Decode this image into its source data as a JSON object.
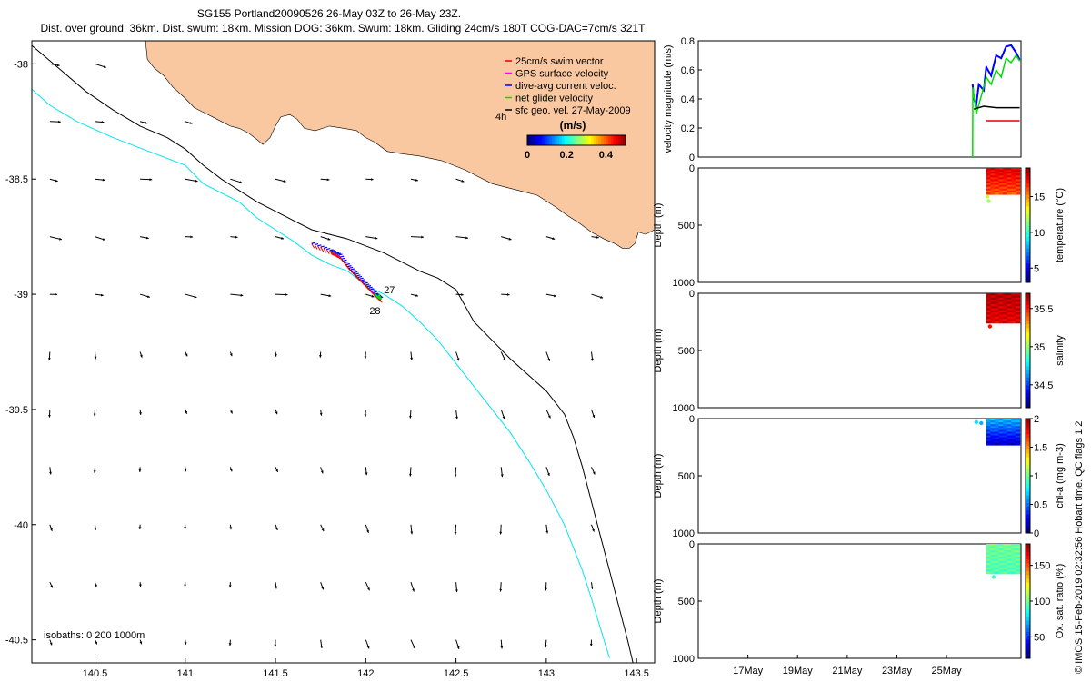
{
  "header": {
    "line1": "SG155 Portland20090526 26-May 03Z to 26-May 23Z.",
    "line2": "Dist. over ground: 36km. Dist. swum: 18km. Mission DOG: 36km. Swum: 18km. Gliding 24cm/s 180T COG-DAC=7cm/s 321T"
  },
  "colors": {
    "land": "#fac8a0",
    "isobath200": "#00e5ee",
    "isobath1000": "#000000",
    "swim": "#e00000",
    "gps": "#ff00ff",
    "dac": "#0000ff",
    "net": "#00dd00",
    "sfc": "#000000"
  },
  "chart_data": [
    {
      "type": "map",
      "name": "track-map",
      "xlabel": "",
      "ylabel": "",
      "xlim": [
        140.15,
        143.6
      ],
      "ylim": [
        -40.6,
        -37.9
      ],
      "xticks": [
        140.5,
        141,
        141.5,
        142,
        142.5,
        143,
        143.5
      ],
      "xtick_labels": [
        "140.5",
        "141",
        "141.5",
        "142",
        "142.5",
        "143",
        "143.5"
      ],
      "yticks": [
        -38,
        -38.5,
        -39,
        -39.5,
        -40,
        -40.5
      ],
      "ytick_labels": [
        "-38",
        "-38.5",
        "-39",
        "-39.5",
        "-40",
        "-40.5"
      ],
      "legend": [
        {
          "key": "swim",
          "label": "25cm/s swim vector"
        },
        {
          "key": "gps",
          "label": "GPS surface velocity"
        },
        {
          "key": "dac",
          "label": "dive-avg current veloc."
        },
        {
          "key": "net",
          "label": "net glider velocity"
        },
        {
          "key": "sfc",
          "label": "sfc geo. vel. 27-May-2009"
        }
      ],
      "legend_extra": "4h",
      "colorbar": {
        "title": "(m/s)",
        "ticks": [
          0,
          0.2,
          0.4
        ],
        "tick_labels": [
          "0",
          "0.2",
          "0.4"
        ],
        "range": [
          0,
          0.5
        ]
      },
      "isobath_label": "isobaths: 0   200  1000m",
      "track_labels": [
        {
          "text": "27",
          "x": 142.08,
          "y": -38.98
        },
        {
          "text": "28",
          "x": 142.0,
          "y": -39.07
        }
      ],
      "track": [
        [
          141.7,
          -38.78
        ],
        [
          141.8,
          -38.81
        ],
        [
          141.85,
          -38.83
        ],
        [
          141.9,
          -38.88
        ],
        [
          141.95,
          -38.92
        ],
        [
          142.0,
          -38.96
        ],
        [
          142.05,
          -39.0
        ],
        [
          142.08,
          -39.02
        ]
      ],
      "coast": [
        [
          140.78,
          -37.9
        ],
        [
          140.79,
          -37.98
        ],
        [
          140.83,
          -38.02
        ],
        [
          140.88,
          -38.05
        ],
        [
          140.93,
          -38.1
        ],
        [
          141.0,
          -38.15
        ],
        [
          141.05,
          -38.19
        ],
        [
          141.1,
          -38.21
        ],
        [
          141.15,
          -38.23
        ],
        [
          141.2,
          -38.25
        ],
        [
          141.25,
          -38.27
        ],
        [
          141.3,
          -38.28
        ],
        [
          141.35,
          -38.3
        ],
        [
          141.4,
          -38.33
        ],
        [
          141.43,
          -38.35
        ],
        [
          141.47,
          -38.32
        ],
        [
          141.5,
          -38.27
        ],
        [
          141.53,
          -38.23
        ],
        [
          141.58,
          -38.22
        ],
        [
          141.62,
          -38.24
        ],
        [
          141.66,
          -38.28
        ],
        [
          141.72,
          -38.29
        ],
        [
          141.8,
          -38.27
        ],
        [
          141.88,
          -38.28
        ],
        [
          141.95,
          -38.29
        ],
        [
          142.0,
          -38.32
        ],
        [
          142.05,
          -38.34
        ],
        [
          142.12,
          -38.38
        ],
        [
          142.2,
          -38.39
        ],
        [
          142.3,
          -38.4
        ],
        [
          142.42,
          -38.42
        ],
        [
          142.55,
          -38.46
        ],
        [
          142.7,
          -38.52
        ],
        [
          142.85,
          -38.55
        ],
        [
          142.95,
          -38.57
        ],
        [
          143.05,
          -38.62
        ],
        [
          143.12,
          -38.66
        ],
        [
          143.18,
          -38.69
        ],
        [
          143.25,
          -38.73
        ],
        [
          143.32,
          -38.76
        ],
        [
          143.38,
          -38.78
        ],
        [
          143.42,
          -38.8
        ],
        [
          143.46,
          -38.8
        ],
        [
          143.49,
          -38.78
        ],
        [
          143.51,
          -38.73
        ],
        [
          143.55,
          -38.74
        ],
        [
          143.6,
          -38.72
        ]
      ],
      "isobath200": [
        [
          140.15,
          -38.11
        ],
        [
          140.25,
          -38.18
        ],
        [
          140.4,
          -38.25
        ],
        [
          140.6,
          -38.32
        ],
        [
          140.8,
          -38.38
        ],
        [
          141.0,
          -38.44
        ],
        [
          141.1,
          -38.52
        ],
        [
          141.2,
          -38.56
        ],
        [
          141.3,
          -38.6
        ],
        [
          141.4,
          -38.67
        ],
        [
          141.5,
          -38.72
        ],
        [
          141.6,
          -38.77
        ],
        [
          141.7,
          -38.83
        ],
        [
          141.8,
          -38.87
        ],
        [
          141.9,
          -38.9
        ],
        [
          142.0,
          -38.96
        ],
        [
          142.1,
          -39.0
        ],
        [
          142.2,
          -39.05
        ],
        [
          142.3,
          -39.12
        ],
        [
          142.4,
          -39.2
        ],
        [
          142.5,
          -39.3
        ],
        [
          142.6,
          -39.4
        ],
        [
          142.7,
          -39.5
        ],
        [
          142.8,
          -39.6
        ],
        [
          142.9,
          -39.72
        ],
        [
          143.0,
          -39.85
        ],
        [
          143.1,
          -40.0
        ],
        [
          143.15,
          -40.1
        ],
        [
          143.2,
          -40.2
        ],
        [
          143.25,
          -40.32
        ],
        [
          143.3,
          -40.45
        ],
        [
          143.35,
          -40.58
        ]
      ],
      "isobath1000": [
        [
          140.15,
          -37.92
        ],
        [
          140.3,
          -38.02
        ],
        [
          140.45,
          -38.12
        ],
        [
          140.6,
          -38.2
        ],
        [
          140.75,
          -38.27
        ],
        [
          140.9,
          -38.32
        ],
        [
          141.0,
          -38.37
        ],
        [
          141.1,
          -38.44
        ],
        [
          141.2,
          -38.5
        ],
        [
          141.3,
          -38.55
        ],
        [
          141.4,
          -38.6
        ],
        [
          141.5,
          -38.64
        ],
        [
          141.6,
          -38.68
        ],
        [
          141.7,
          -38.72
        ],
        [
          141.8,
          -38.74
        ],
        [
          141.9,
          -38.76
        ],
        [
          142.0,
          -38.79
        ],
        [
          142.1,
          -38.82
        ],
        [
          142.2,
          -38.86
        ],
        [
          142.3,
          -38.9
        ],
        [
          142.4,
          -38.93
        ],
        [
          142.5,
          -38.98
        ],
        [
          142.55,
          -39.05
        ],
        [
          142.6,
          -39.12
        ],
        [
          142.7,
          -39.2
        ],
        [
          142.8,
          -39.28
        ],
        [
          142.9,
          -39.35
        ],
        [
          143.0,
          -39.42
        ],
        [
          143.1,
          -39.52
        ],
        [
          143.15,
          -39.62
        ],
        [
          143.2,
          -39.75
        ],
        [
          143.25,
          -39.9
        ],
        [
          143.3,
          -40.05
        ],
        [
          143.35,
          -40.2
        ],
        [
          143.4,
          -40.35
        ],
        [
          143.45,
          -40.5
        ],
        [
          143.48,
          -40.6
        ]
      ]
    },
    {
      "type": "line",
      "name": "velocity-panel",
      "xlabel": "",
      "ylabel": "velocity magnitude (m/s)",
      "xlim": [
        15,
        28
      ],
      "ylim": [
        0,
        0.8
      ],
      "yticks": [
        0,
        0.2,
        0.4,
        0.6,
        0.8
      ],
      "ytick_labels": [
        "0",
        "0.2",
        "0.4",
        "0.6",
        "0.8"
      ],
      "series": [
        {
          "name": "dive-avg current",
          "color": "#0000ff",
          "x": [
            26.05,
            26.1,
            26.2,
            26.3,
            26.5,
            26.6,
            26.8,
            27.0,
            27.2,
            27.4,
            27.6,
            27.8,
            27.95
          ],
          "y": [
            0.5,
            0.4,
            0.36,
            0.5,
            0.46,
            0.62,
            0.56,
            0.7,
            0.68,
            0.76,
            0.77,
            0.72,
            0.67
          ]
        },
        {
          "name": "net glider",
          "color": "#00dd00",
          "x": [
            26.05,
            26.06,
            26.2,
            26.4,
            26.6,
            26.8,
            27.0,
            27.2,
            27.4,
            27.6,
            27.8,
            27.95
          ],
          "y": [
            0.0,
            0.48,
            0.3,
            0.42,
            0.55,
            0.5,
            0.6,
            0.55,
            0.68,
            0.65,
            0.7,
            0.66
          ]
        },
        {
          "name": "sfc geo",
          "color": "#000000",
          "x": [
            26.1,
            26.5,
            27.0,
            27.5,
            27.95
          ],
          "y": [
            0.33,
            0.35,
            0.34,
            0.34,
            0.34
          ]
        },
        {
          "name": "swim",
          "color": "#e00000",
          "x": [
            26.6,
            27.0,
            27.5,
            27.95
          ],
          "y": [
            0.25,
            0.25,
            0.25,
            0.25
          ]
        }
      ]
    },
    {
      "type": "scatter",
      "name": "temperature-panel",
      "ylabel": "Depth (m)",
      "cbar_label": "temperature (°C)",
      "ylim": [
        1000,
        0
      ],
      "yticks": [
        0,
        500,
        1000
      ],
      "cbar_range": [
        3,
        19
      ],
      "cbar_ticks": [
        5,
        10,
        15
      ],
      "cbar_tick_labels": [
        "5",
        "10",
        "15"
      ],
      "block": {
        "x0": 26.6,
        "x1": 27.95,
        "d0": 0,
        "d1": 230,
        "v_top": 17.5,
        "v_bot": 15.8
      },
      "outliers": [
        {
          "x": 26.65,
          "d": 250,
          "v": 12
        },
        {
          "x": 26.7,
          "d": 290,
          "v": 11.5
        }
      ]
    },
    {
      "type": "scatter",
      "name": "salinity-panel",
      "ylabel": "Depth (m)",
      "cbar_label": "salinity",
      "ylim": [
        1000,
        0
      ],
      "yticks": [
        0,
        500,
        1000
      ],
      "cbar_range": [
        34.2,
        35.7
      ],
      "cbar_ticks": [
        34.5,
        35,
        35.5
      ],
      "cbar_tick_labels": [
        "34.5",
        "35",
        "35.5"
      ],
      "block": {
        "x0": 26.6,
        "x1": 27.95,
        "d0": 0,
        "d1": 260,
        "v_top": 35.62,
        "v_bot": 35.55
      },
      "outliers": [
        {
          "x": 26.75,
          "d": 290,
          "v": 35.5
        }
      ]
    },
    {
      "type": "scatter",
      "name": "chla-panel",
      "ylabel": "Depth (m)",
      "cbar_label": "chl-a (mg m-3)",
      "ylim": [
        1000,
        0
      ],
      "yticks": [
        0,
        500,
        1000
      ],
      "cbar_range": [
        0,
        2
      ],
      "cbar_ticks": [
        0,
        0.5,
        1,
        1.5,
        2
      ],
      "cbar_tick_labels": [
        "0",
        "0.5",
        "1",
        "1.5",
        "2"
      ],
      "block": {
        "x0": 26.6,
        "x1": 27.95,
        "d0": 0,
        "d1": 230,
        "v_top": 0.6,
        "v_bot": 0.15
      },
      "outliers": [
        {
          "x": 26.2,
          "d": 30,
          "v": 0.7
        },
        {
          "x": 26.4,
          "d": 40,
          "v": 0.6
        }
      ]
    },
    {
      "type": "scatter",
      "name": "oxygen-panel",
      "ylabel": "Depth (m)",
      "cbar_label": "Ox. sat. ratio (%)",
      "ylim": [
        1000,
        0
      ],
      "yticks": [
        0,
        500,
        1000
      ],
      "cbar_range": [
        20,
        180
      ],
      "cbar_ticks": [
        50,
        100,
        150
      ],
      "cbar_tick_labels": [
        "50",
        "100",
        "150"
      ],
      "xticks": [
        17,
        19,
        21,
        23,
        25
      ],
      "xtick_labels": [
        "17May",
        "19May",
        "21May",
        "23May",
        "25May"
      ],
      "block": {
        "x0": 26.6,
        "x1": 27.95,
        "d0": 0,
        "d1": 260,
        "v_top": 97,
        "v_bot": 92
      },
      "outliers": [
        {
          "x": 26.9,
          "d": 290,
          "v": 90
        }
      ]
    }
  ],
  "footer": {
    "credit": "© IMOS 15-Feb-2019 02:32:56 Hobart time. QC flags 1  2"
  }
}
